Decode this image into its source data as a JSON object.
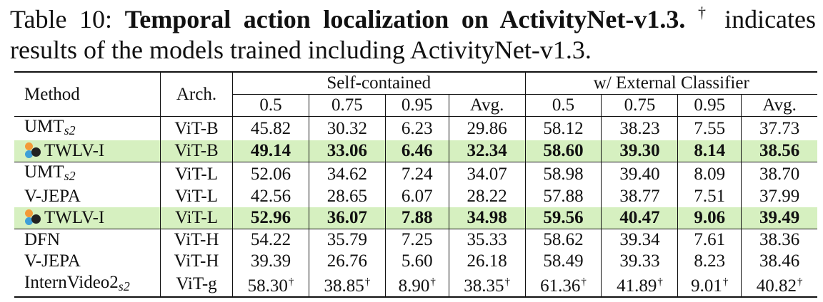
{
  "caption": {
    "prefix": "Table 10: ",
    "bold": "Temporal action localization on ActivityNet-v1.3.",
    "dagger": "†",
    "rest": " indicates results of the models trained including ActivityNet-v1.3."
  },
  "table": {
    "headers": {
      "method": "Method",
      "arch": "Arch.",
      "group1": "Self-contained",
      "group2": "w/ External Classifier",
      "cols": [
        "0.5",
        "0.75",
        "0.95",
        "Avg.",
        "0.5",
        "0.75",
        "0.95",
        "Avg."
      ]
    },
    "rows": [
      {
        "method": "UMT",
        "sub": "s2",
        "arch": "ViT-B",
        "values": [
          "45.82",
          "30.32",
          "6.23",
          "29.86",
          "58.12",
          "38.23",
          "7.55",
          "37.73"
        ],
        "highlight": false,
        "dagger": false
      },
      {
        "method": "TWLV-I",
        "sub": "",
        "arch": "ViT-B",
        "values": [
          "49.14",
          "33.06",
          "6.46",
          "32.34",
          "58.60",
          "39.30",
          "8.14",
          "38.56"
        ],
        "highlight": true,
        "dagger": false
      },
      {
        "method": "UMT",
        "sub": "s2",
        "arch": "ViT-L",
        "values": [
          "52.06",
          "34.62",
          "7.24",
          "34.07",
          "58.98",
          "39.40",
          "8.09",
          "38.70"
        ],
        "highlight": false,
        "dagger": false
      },
      {
        "method": "V-JEPA",
        "sub": "",
        "arch": "ViT-L",
        "values": [
          "42.56",
          "28.65",
          "6.07",
          "28.22",
          "57.88",
          "38.77",
          "7.51",
          "37.99"
        ],
        "highlight": false,
        "dagger": false
      },
      {
        "method": "TWLV-I",
        "sub": "",
        "arch": "ViT-L",
        "values": [
          "52.96",
          "36.07",
          "7.88",
          "34.98",
          "59.56",
          "40.47",
          "9.06",
          "39.49"
        ],
        "highlight": true,
        "dagger": false
      },
      {
        "method": "DFN",
        "sub": "",
        "arch": "ViT-H",
        "values": [
          "54.22",
          "35.79",
          "7.25",
          "35.33",
          "58.62",
          "39.34",
          "7.61",
          "38.36"
        ],
        "highlight": false,
        "dagger": false
      },
      {
        "method": "V-JEPA",
        "sub": "",
        "arch": "ViT-H",
        "values": [
          "39.39",
          "26.76",
          "5.60",
          "26.18",
          "58.49",
          "39.33",
          "8.23",
          "38.46"
        ],
        "highlight": false,
        "dagger": false
      },
      {
        "method": "InternVideo2",
        "sub": "s2",
        "arch": "ViT-g",
        "values": [
          "58.30",
          "38.85",
          "8.90",
          "38.35",
          "61.36",
          "41.89",
          "9.01",
          "40.82"
        ],
        "highlight": false,
        "dagger": true
      }
    ],
    "dagger_mark": "†",
    "logo_icon": "twlv-logo-icon",
    "highlight_color": "#d6f0c0"
  }
}
